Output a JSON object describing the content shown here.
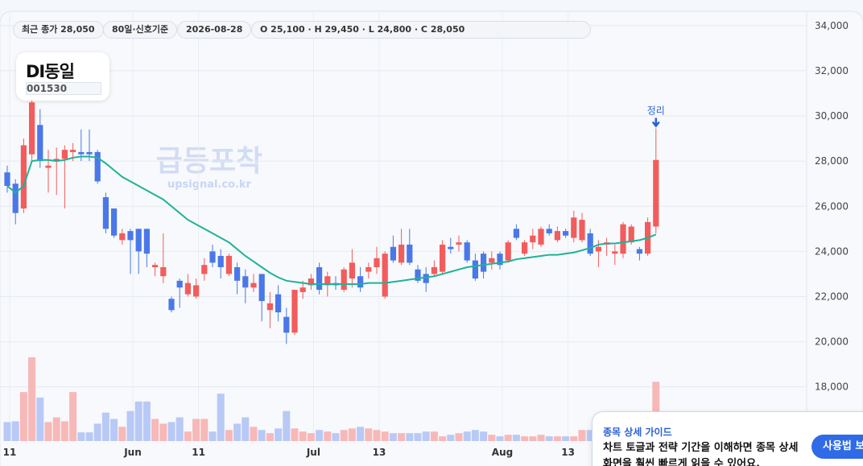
{
  "header": {
    "pills": [
      "최근 종가 28,050",
      "80일·신호기준",
      "2026-08-28",
      "O 25,100 · H 29,450 · L 24,800 · C 28,050"
    ]
  },
  "logo": {
    "name": "DI동일",
    "code": "001530"
  },
  "watermark": {
    "title": "급등포착",
    "url": "upsignal.co.kr"
  },
  "guide": {
    "title": "종목 상세 가이드",
    "lines": [
      "차트 토글과 전략 기간을 이해하면 종목 상세",
      "화면을 훨씬 빠르게 읽을 수 있어요."
    ],
    "button": "사용법 보기"
  },
  "chart_data": {
    "type": "candlestick",
    "categories": [
      "11",
      null,
      null,
      null,
      null,
      null,
      null,
      null,
      null,
      null,
      null,
      null,
      null,
      null,
      null,
      "Jun",
      null,
      null,
      null,
      null,
      null,
      null,
      null,
      "11",
      null,
      null,
      null,
      null,
      null,
      null,
      null,
      null,
      null,
      null,
      null,
      null,
      null,
      "Jul",
      null,
      null,
      null,
      null,
      null,
      null,
      null,
      "13",
      null,
      null,
      null,
      null,
      null,
      null,
      null,
      null,
      null,
      null,
      null,
      null,
      null,
      null,
      "Aug",
      null,
      null,
      null,
      null,
      null,
      null,
      null,
      "13",
      null,
      null,
      null,
      null,
      null,
      null,
      null,
      null,
      null,
      null,
      null
    ],
    "open": [
      27500,
      27000,
      25900,
      28300,
      29600,
      27700,
      28000,
      28100,
      28400,
      28400,
      28400,
      28400,
      26400,
      25900,
      24500,
      24900,
      25000,
      25000,
      23300,
      22900,
      21900,
      22700,
      22100,
      22000,
      23000,
      24000,
      23800,
      23000,
      23300,
      22900,
      22400,
      23000,
      21400,
      22100,
      21100,
      20400,
      22200,
      22500,
      23300,
      22500,
      22600,
      22300,
      22800,
      22900,
      23100,
      23300,
      22000,
      24200,
      23500,
      24300,
      23200,
      23000,
      23000,
      23100,
      24200,
      24300,
      24400,
      23600,
      23900,
      23500,
      23900,
      23600,
      25000,
      23900,
      24400,
      24300,
      25000,
      24500,
      24900,
      24600,
      24500,
      24800,
      24000,
      24300,
      23900,
      23900,
      24400,
      24100,
      23900,
      25100
    ],
    "high": [
      27800,
      27200,
      29000,
      30700,
      30300,
      28500,
      28600,
      28700,
      28800,
      29400,
      29400,
      28500,
      26600,
      25900,
      25000,
      25000,
      25000,
      25000,
      23500,
      24800,
      22000,
      22800,
      23000,
      22800,
      23700,
      24300,
      24100,
      23900,
      23500,
      23200,
      23000,
      23000,
      22200,
      22500,
      21500,
      22300,
      22700,
      23000,
      23500,
      23100,
      22900,
      23300,
      24100,
      23300,
      23500,
      24200,
      24000,
      24700,
      25000,
      25000,
      23400,
      23300,
      23600,
      24500,
      24600,
      24700,
      24500,
      23900,
      24000,
      24000,
      24000,
      24500,
      25200,
      24500,
      25000,
      25100,
      25200,
      25100,
      25000,
      25800,
      25700,
      25000,
      24500,
      24600,
      24300,
      25300,
      25200,
      24200,
      25500,
      29450
    ],
    "low": [
      26600,
      25200,
      25700,
      28000,
      27700,
      26600,
      26500,
      25900,
      28000,
      28000,
      28000,
      27000,
      24800,
      24600,
      24300,
      23000,
      23000,
      23300,
      22900,
      22600,
      21300,
      21500,
      22000,
      21900,
      22700,
      23300,
      22800,
      22900,
      22100,
      21700,
      22200,
      20900,
      20600,
      20900,
      19900,
      20300,
      21900,
      22300,
      22100,
      22000,
      22300,
      22200,
      22400,
      22200,
      22800,
      23000,
      21900,
      23500,
      23400,
      23400,
      22600,
      22200,
      22900,
      23000,
      23900,
      24000,
      23500,
      22700,
      22800,
      23200,
      23200,
      23500,
      24500,
      23800,
      24100,
      24200,
      24700,
      24400,
      24600,
      24400,
      24400,
      23800,
      23300,
      23800,
      23400,
      23700,
      24300,
      23600,
      23800,
      24800
    ],
    "close": [
      26900,
      25700,
      28700,
      30600,
      28000,
      27800,
      28100,
      28500,
      28500,
      28300,
      28300,
      27100,
      25000,
      24700,
      24800,
      24500,
      24000,
      23900,
      23400,
      23300,
      21400,
      22400,
      22600,
      22500,
      23400,
      23500,
      23300,
      23800,
      22700,
      22400,
      22600,
      21800,
      21700,
      21300,
      20400,
      22300,
      22400,
      22800,
      22300,
      22900,
      22500,
      23200,
      23500,
      22400,
      23300,
      23700,
      23900,
      23600,
      24300,
      23500,
      22700,
      22600,
      23300,
      24300,
      24100,
      24400,
      23600,
      22800,
      23100,
      23700,
      23400,
      24400,
      24600,
      24400,
      24700,
      25000,
      24800,
      24900,
      24700,
      25500,
      25400,
      23900,
      24200,
      24400,
      24000,
      25200,
      25100,
      23900,
      25300,
      28050
    ],
    "ma": {
      "color": "#1fb396",
      "values": [
        26900,
        26600,
        26900,
        28000,
        28050,
        28050,
        28000,
        28050,
        28150,
        28200,
        28200,
        28150,
        27900,
        27600,
        27300,
        27100,
        26900,
        26700,
        26500,
        26300,
        26000,
        25700,
        25400,
        25200,
        25000,
        24800,
        24600,
        24400,
        24100,
        23800,
        23550,
        23300,
        23050,
        22850,
        22700,
        22650,
        22600,
        22550,
        22550,
        22550,
        22550,
        22550,
        22550,
        22550,
        22600,
        22600,
        22600,
        22650,
        22700,
        22750,
        22800,
        22850,
        22900,
        23000,
        23100,
        23200,
        23300,
        23350,
        23400,
        23450,
        23500,
        23550,
        23650,
        23700,
        23750,
        23800,
        23850,
        23850,
        23900,
        23950,
        24050,
        24150,
        24300,
        24350,
        24350,
        24400,
        24450,
        24500,
        24600,
        24750
      ]
    },
    "volume": {
      "ylim": [
        0,
        110
      ],
      "values": [
        24,
        25,
        62,
        106,
        55,
        24,
        30,
        25,
        62,
        11,
        11,
        22,
        36,
        28,
        18,
        38,
        50,
        50,
        28,
        22,
        24,
        30,
        12,
        28,
        28,
        12,
        60,
        14,
        22,
        30,
        18,
        14,
        10,
        16,
        38,
        16,
        12,
        10,
        14,
        12,
        10,
        14,
        16,
        18,
        16,
        14,
        12,
        10,
        10,
        10,
        10,
        12,
        12,
        6,
        8,
        10,
        12,
        14,
        12,
        8,
        6,
        8,
        8,
        6,
        6,
        8,
        6,
        6,
        6,
        6,
        14,
        14,
        10,
        8,
        6,
        8,
        8,
        6,
        10,
        75
      ]
    },
    "up_color": "#f25c5c",
    "down_color": "#4a78e8",
    "annotation": {
      "text": "정리"
    },
    "ylim": [
      15600,
      34600
    ],
    "yticks": [
      {
        "value": 18000,
        "label": "18,000"
      },
      {
        "value": 20000,
        "label": "20,000"
      },
      {
        "value": 22000,
        "label": "22,000"
      },
      {
        "value": 24000,
        "label": "24,000"
      },
      {
        "value": 26000,
        "label": "26,000"
      },
      {
        "value": 28000,
        "label": "28,000"
      },
      {
        "value": 30000,
        "label": "30,000"
      },
      {
        "value": 32000,
        "label": "32,000"
      },
      {
        "value": 34000,
        "label": "34,000"
      }
    ],
    "grid": true
  }
}
